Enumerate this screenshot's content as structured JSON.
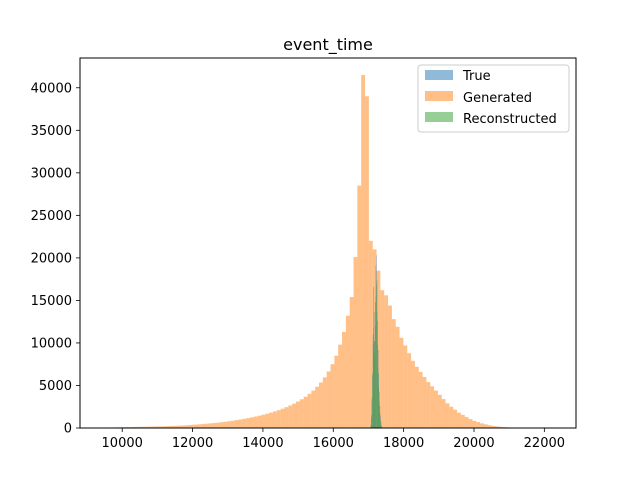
{
  "chart_data": {
    "type": "bar",
    "title": "event_time",
    "xlabel": "",
    "ylabel": "",
    "xlim": [
      8800,
      22900
    ],
    "ylim": [
      0,
      43500
    ],
    "xticks": [
      10000,
      12000,
      14000,
      16000,
      18000,
      20000,
      22000
    ],
    "yticks": [
      0,
      5000,
      10000,
      15000,
      20000,
      25000,
      30000,
      35000,
      40000
    ],
    "grid": false,
    "legend_position": "top-right",
    "series": [
      {
        "name": "True",
        "color": "#1f77b4",
        "alpha": 0.5,
        "bin_width": 16,
        "bins": [
          {
            "x": 17060,
            "y": 200
          },
          {
            "x": 17076,
            "y": 1200
          },
          {
            "x": 17092,
            "y": 3200
          },
          {
            "x": 17108,
            "y": 6200
          },
          {
            "x": 17124,
            "y": 11000
          },
          {
            "x": 17140,
            "y": 16600
          },
          {
            "x": 17156,
            "y": 13600
          },
          {
            "x": 17172,
            "y": 10200
          },
          {
            "x": 17188,
            "y": 14800
          },
          {
            "x": 17204,
            "y": 19100
          },
          {
            "x": 17220,
            "y": 20300
          },
          {
            "x": 17236,
            "y": 17400
          },
          {
            "x": 17252,
            "y": 12600
          },
          {
            "x": 17268,
            "y": 9200
          },
          {
            "x": 17284,
            "y": 6400
          },
          {
            "x": 17300,
            "y": 4200
          },
          {
            "x": 17316,
            "y": 2600
          },
          {
            "x": 17332,
            "y": 1500
          },
          {
            "x": 17348,
            "y": 800
          },
          {
            "x": 17364,
            "y": 300
          }
        ]
      },
      {
        "name": "Generated",
        "color": "#ff7f0e",
        "alpha": 0.5,
        "bin_width": 109,
        "bins": [
          {
            "x": 9600,
            "y": 60
          },
          {
            "x": 9709,
            "y": 70
          },
          {
            "x": 9818,
            "y": 80
          },
          {
            "x": 9927,
            "y": 90
          },
          {
            "x": 10036,
            "y": 100
          },
          {
            "x": 10145,
            "y": 110
          },
          {
            "x": 10254,
            "y": 120
          },
          {
            "x": 10363,
            "y": 130
          },
          {
            "x": 10472,
            "y": 140
          },
          {
            "x": 10581,
            "y": 150
          },
          {
            "x": 10690,
            "y": 160
          },
          {
            "x": 10799,
            "y": 170
          },
          {
            "x": 10908,
            "y": 180
          },
          {
            "x": 11017,
            "y": 190
          },
          {
            "x": 11126,
            "y": 200
          },
          {
            "x": 11235,
            "y": 220
          },
          {
            "x": 11344,
            "y": 240
          },
          {
            "x": 11453,
            "y": 260
          },
          {
            "x": 11562,
            "y": 280
          },
          {
            "x": 11671,
            "y": 300
          },
          {
            "x": 11780,
            "y": 330
          },
          {
            "x": 11889,
            "y": 360
          },
          {
            "x": 11998,
            "y": 390
          },
          {
            "x": 12107,
            "y": 420
          },
          {
            "x": 12216,
            "y": 460
          },
          {
            "x": 12325,
            "y": 500
          },
          {
            "x": 12434,
            "y": 540
          },
          {
            "x": 12543,
            "y": 580
          },
          {
            "x": 12652,
            "y": 620
          },
          {
            "x": 12761,
            "y": 680
          },
          {
            "x": 12870,
            "y": 740
          },
          {
            "x": 12979,
            "y": 800
          },
          {
            "x": 13088,
            "y": 860
          },
          {
            "x": 13197,
            "y": 930
          },
          {
            "x": 13306,
            "y": 1000
          },
          {
            "x": 13415,
            "y": 1080
          },
          {
            "x": 13524,
            "y": 1160
          },
          {
            "x": 13633,
            "y": 1250
          },
          {
            "x": 13742,
            "y": 1350
          },
          {
            "x": 13851,
            "y": 1450
          },
          {
            "x": 13960,
            "y": 1560
          },
          {
            "x": 14069,
            "y": 1680
          },
          {
            "x": 14178,
            "y": 1810
          },
          {
            "x": 14287,
            "y": 1950
          },
          {
            "x": 14396,
            "y": 2100
          },
          {
            "x": 14505,
            "y": 2270
          },
          {
            "x": 14614,
            "y": 2450
          },
          {
            "x": 14723,
            "y": 2650
          },
          {
            "x": 14832,
            "y": 2870
          },
          {
            "x": 14941,
            "y": 3110
          },
          {
            "x": 15050,
            "y": 3380
          },
          {
            "x": 15159,
            "y": 3680
          },
          {
            "x": 15268,
            "y": 4020
          },
          {
            "x": 15377,
            "y": 4400
          },
          {
            "x": 15486,
            "y": 4850
          },
          {
            "x": 15595,
            "y": 5350
          },
          {
            "x": 15704,
            "y": 5950
          },
          {
            "x": 15813,
            "y": 6650
          },
          {
            "x": 15922,
            "y": 7500
          },
          {
            "x": 16031,
            "y": 8500
          },
          {
            "x": 16140,
            "y": 9800
          },
          {
            "x": 16249,
            "y": 11300
          },
          {
            "x": 16358,
            "y": 13200
          },
          {
            "x": 16467,
            "y": 15400
          },
          {
            "x": 16576,
            "y": 20100
          },
          {
            "x": 16685,
            "y": 28500
          },
          {
            "x": 16794,
            "y": 41500
          },
          {
            "x": 16903,
            "y": 39000
          },
          {
            "x": 17012,
            "y": 22000
          },
          {
            "x": 17121,
            "y": 21000
          },
          {
            "x": 17230,
            "y": 18500
          },
          {
            "x": 17339,
            "y": 16200
          },
          {
            "x": 17448,
            "y": 15600
          },
          {
            "x": 17557,
            "y": 14400
          },
          {
            "x": 17666,
            "y": 12800
          },
          {
            "x": 17775,
            "y": 11900
          },
          {
            "x": 17884,
            "y": 10600
          },
          {
            "x": 17993,
            "y": 9700
          },
          {
            "x": 18102,
            "y": 8800
          },
          {
            "x": 18211,
            "y": 7900
          },
          {
            "x": 18320,
            "y": 7200
          },
          {
            "x": 18429,
            "y": 6600
          },
          {
            "x": 18538,
            "y": 6000
          },
          {
            "x": 18647,
            "y": 5400
          },
          {
            "x": 18756,
            "y": 4900
          },
          {
            "x": 18865,
            "y": 4400
          },
          {
            "x": 18974,
            "y": 3900
          },
          {
            "x": 19083,
            "y": 3400
          },
          {
            "x": 19192,
            "y": 2900
          },
          {
            "x": 19301,
            "y": 2500
          },
          {
            "x": 19410,
            "y": 2150
          },
          {
            "x": 19519,
            "y": 1800
          },
          {
            "x": 19628,
            "y": 1550
          },
          {
            "x": 19737,
            "y": 1300
          },
          {
            "x": 19846,
            "y": 1050
          },
          {
            "x": 19955,
            "y": 850
          },
          {
            "x": 20064,
            "y": 700
          },
          {
            "x": 20173,
            "y": 550
          },
          {
            "x": 20282,
            "y": 430
          },
          {
            "x": 20391,
            "y": 330
          },
          {
            "x": 20500,
            "y": 250
          },
          {
            "x": 20609,
            "y": 190
          },
          {
            "x": 20718,
            "y": 140
          },
          {
            "x": 20827,
            "y": 100
          },
          {
            "x": 20936,
            "y": 70
          },
          {
            "x": 21045,
            "y": 50
          },
          {
            "x": 21154,
            "y": 40
          },
          {
            "x": 21263,
            "y": 30
          },
          {
            "x": 21372,
            "y": 25
          },
          {
            "x": 21481,
            "y": 20
          },
          {
            "x": 21590,
            "y": 15
          },
          {
            "x": 21699,
            "y": 12
          },
          {
            "x": 21808,
            "y": 10
          },
          {
            "x": 21917,
            "y": 8
          },
          {
            "x": 22026,
            "y": 6
          },
          {
            "x": 22135,
            "y": 5
          }
        ]
      },
      {
        "name": "Reconstructed",
        "color": "#2ca02c",
        "alpha": 0.5,
        "bin_width": 16,
        "bins": [
          {
            "x": 17060,
            "y": 400
          },
          {
            "x": 17076,
            "y": 1500
          },
          {
            "x": 17092,
            "y": 3600
          },
          {
            "x": 17108,
            "y": 6500
          },
          {
            "x": 17124,
            "y": 9800
          },
          {
            "x": 17140,
            "y": 11800
          },
          {
            "x": 17156,
            "y": 10200
          },
          {
            "x": 17172,
            "y": 8800
          },
          {
            "x": 17188,
            "y": 12000
          },
          {
            "x": 17204,
            "y": 15600
          },
          {
            "x": 17220,
            "y": 16900
          },
          {
            "x": 17236,
            "y": 13600
          },
          {
            "x": 17252,
            "y": 9800
          },
          {
            "x": 17268,
            "y": 7000
          },
          {
            "x": 17284,
            "y": 4800
          },
          {
            "x": 17300,
            "y": 3100
          },
          {
            "x": 17316,
            "y": 1900
          },
          {
            "x": 17332,
            "y": 1000
          },
          {
            "x": 17348,
            "y": 500
          },
          {
            "x": 17364,
            "y": 200
          }
        ]
      }
    ]
  }
}
